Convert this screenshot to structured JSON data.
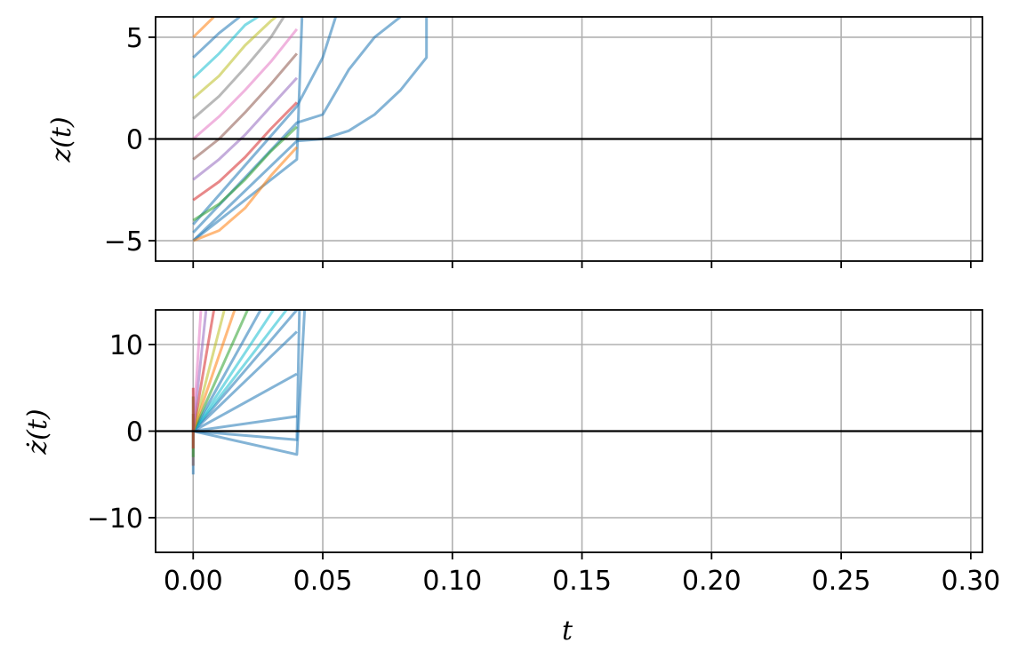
{
  "chart_data": [
    {
      "type": "line",
      "id": "top",
      "ylabel": "z(t)",
      "xlim": [
        -0.0145,
        0.3045
      ],
      "ylim": [
        -6,
        6
      ],
      "xticks": [
        0.0,
        0.05,
        0.1,
        0.15,
        0.2,
        0.25,
        0.3
      ],
      "yticks": [
        {
          "value": -5,
          "label": "−5"
        },
        {
          "value": 0,
          "label": "0"
        },
        {
          "value": 5,
          "label": "5"
        }
      ],
      "grid": true,
      "zero_line": 0,
      "series_note_visible": "dense fan of multicolor trajectories from z=-5..5 at t=0 to t≈0.04; one trajectory extends to t=0.09",
      "series": [
        {
          "color": "#1f77b4",
          "x": [
            0.0,
            0.04,
            0.042
          ],
          "y": [
            -5,
            -1.0,
            6
          ]
        },
        {
          "color": "#1f77b4",
          "x": [
            0.0,
            0.04,
            0.05,
            0.06,
            0.07,
            0.08,
            0.09,
            0.09
          ],
          "y": [
            -5,
            -0.1,
            0.0,
            0.4,
            1.2,
            2.4,
            4.0,
            6
          ]
        },
        {
          "color": "#1f77b4",
          "x": [
            0.0,
            0.04,
            0.05,
            0.06,
            0.07,
            0.08
          ],
          "y": [
            -4.6,
            0.8,
            1.2,
            3.4,
            5.0,
            6
          ]
        },
        {
          "color": "#1f77b4",
          "x": [
            0.0,
            0.04,
            0.05,
            0.055
          ],
          "y": [
            -4.2,
            1.6,
            4.0,
            6
          ]
        },
        {
          "color": "#ff7f0e",
          "x": [
            0.0,
            0.01,
            0.02,
            0.03,
            0.04
          ],
          "y": [
            -5,
            -4.5,
            -3.4,
            -1.8,
            -0.4
          ]
        },
        {
          "color": "#2ca02c",
          "x": [
            0.0,
            0.01,
            0.02,
            0.03,
            0.04
          ],
          "y": [
            -4.0,
            -3.2,
            -2.0,
            -0.6,
            0.6
          ]
        },
        {
          "color": "#d62728",
          "x": [
            0.0,
            0.01,
            0.02,
            0.03,
            0.04
          ],
          "y": [
            -3.0,
            -2.1,
            -0.9,
            0.5,
            1.8
          ]
        },
        {
          "color": "#9467bd",
          "x": [
            0.0,
            0.01,
            0.02,
            0.03,
            0.04
          ],
          "y": [
            -2.0,
            -1.0,
            0.2,
            1.6,
            3.0
          ]
        },
        {
          "color": "#8c564b",
          "x": [
            0.0,
            0.01,
            0.02,
            0.03,
            0.04
          ],
          "y": [
            -1.0,
            0.0,
            1.3,
            2.7,
            4.2
          ]
        },
        {
          "color": "#e377c2",
          "x": [
            0.0,
            0.01,
            0.02,
            0.03,
            0.04
          ],
          "y": [
            0.0,
            1.1,
            2.4,
            3.8,
            5.4
          ]
        },
        {
          "color": "#7f7f7f",
          "x": [
            0.0,
            0.01,
            0.02,
            0.03,
            0.035
          ],
          "y": [
            1.0,
            2.1,
            3.5,
            5.0,
            6
          ]
        },
        {
          "color": "#bcbd22",
          "x": [
            0.0,
            0.01,
            0.02,
            0.03,
            0.032
          ],
          "y": [
            2.0,
            3.1,
            4.6,
            5.8,
            6
          ]
        },
        {
          "color": "#17becf",
          "x": [
            0.0,
            0.01,
            0.02,
            0.025
          ],
          "y": [
            3.0,
            4.2,
            5.6,
            6
          ]
        },
        {
          "color": "#1f77b4",
          "x": [
            0.0,
            0.01,
            0.018
          ],
          "y": [
            4.0,
            5.2,
            6
          ]
        },
        {
          "color": "#ff7f0e",
          "x": [
            0.0,
            0.008
          ],
          "y": [
            5.0,
            6
          ]
        }
      ]
    },
    {
      "type": "line",
      "id": "bottom",
      "ylabel": "ż(t)",
      "xlabel": "t",
      "xlim": [
        -0.0145,
        0.3045
      ],
      "ylim": [
        -14,
        14
      ],
      "xticks": [
        0.0,
        0.05,
        0.1,
        0.15,
        0.2,
        0.25,
        0.3
      ],
      "xtick_labels": [
        "0.00",
        "0.05",
        "0.10",
        "0.15",
        "0.20",
        "0.25",
        "0.30"
      ],
      "yticks": [
        {
          "value": -10,
          "label": "−10"
        },
        {
          "value": 0,
          "label": "0"
        },
        {
          "value": 10,
          "label": "10"
        }
      ],
      "grid": true,
      "zero_line": 0,
      "series": [
        {
          "color": "#1f77b4",
          "x": [
            0.0,
            0.04,
            0.043
          ],
          "y": [
            0.0,
            -2.7,
            14
          ]
        },
        {
          "color": "#1f77b4",
          "x": [
            0.0,
            0.04,
            0.041
          ],
          "y": [
            0.0,
            -1.0,
            14
          ]
        },
        {
          "color": "#1f77b4",
          "x": [
            0.0,
            0.04
          ],
          "y": [
            0.0,
            1.7
          ]
        },
        {
          "color": "#1f77b4",
          "x": [
            0.0,
            0.04
          ],
          "y": [
            0.0,
            6.6
          ]
        },
        {
          "color": "#1f77b4",
          "x": [
            0.0,
            0.04
          ],
          "y": [
            0.0,
            11.5
          ]
        },
        {
          "color": "#1f77b4",
          "x": [
            0.0,
            0.04
          ],
          "y": [
            0.0,
            14
          ]
        },
        {
          "color": "#17becf",
          "x": [
            0.0,
            0.036
          ],
          "y": [
            0.0,
            14
          ]
        },
        {
          "color": "#17becf",
          "x": [
            0.0,
            0.031
          ],
          "y": [
            0.0,
            14
          ]
        },
        {
          "color": "#1f77b4",
          "x": [
            0.0,
            0.026
          ],
          "y": [
            0.0,
            14
          ]
        },
        {
          "color": "#2ca02c",
          "x": [
            0.0,
            0.021
          ],
          "y": [
            0.0,
            14
          ]
        },
        {
          "color": "#ff7f0e",
          "x": [
            0.0,
            0.016
          ],
          "y": [
            0.0,
            14
          ]
        },
        {
          "color": "#bcbd22",
          "x": [
            0.0,
            0.012
          ],
          "y": [
            0.0,
            14
          ]
        },
        {
          "color": "#d62728",
          "x": [
            0.0,
            0.008
          ],
          "y": [
            0.0,
            14
          ]
        },
        {
          "color": "#9467bd",
          "x": [
            0.0,
            0.005
          ],
          "y": [
            0.0,
            14
          ]
        },
        {
          "color": "#e377c2",
          "x": [
            0.0,
            0.003
          ],
          "y": [
            0.0,
            14
          ]
        },
        {
          "color": "#1f77b4",
          "x": [
            0.0,
            0.0
          ],
          "y": [
            -5.0,
            0.0
          ]
        },
        {
          "color": "#8c564b",
          "x": [
            0.0,
            0.0
          ],
          "y": [
            -4.0,
            2.0
          ]
        },
        {
          "color": "#2ca02c",
          "x": [
            0.0,
            0.0
          ],
          "y": [
            -3.0,
            4.0
          ]
        },
        {
          "color": "#d62728",
          "x": [
            0.0,
            0.0
          ],
          "y": [
            -2.0,
            5.0
          ]
        }
      ]
    }
  ]
}
